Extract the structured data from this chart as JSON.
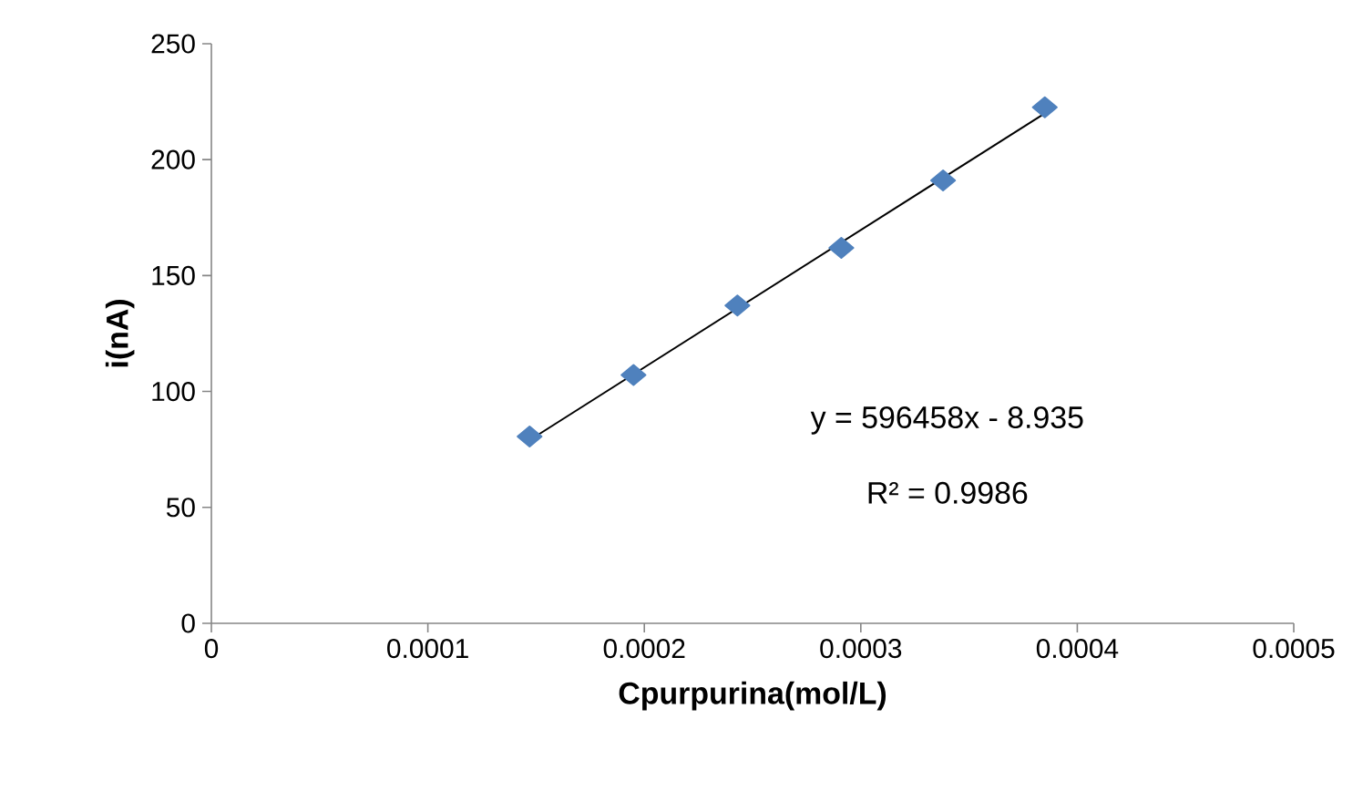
{
  "chart_data": {
    "type": "scatter",
    "xlabel": "Cpurpurina(mol/L)",
    "ylabel": "i(nA)",
    "xlim": [
      0,
      0.0005
    ],
    "ylim": [
      0,
      250
    ],
    "xticks": [
      {
        "value": 0,
        "label": "0"
      },
      {
        "value": 0.0001,
        "label": "0.0001"
      },
      {
        "value": 0.0002,
        "label": "0.0002"
      },
      {
        "value": 0.0003,
        "label": "0.0003"
      },
      {
        "value": 0.0004,
        "label": "0.0004"
      },
      {
        "value": 0.0005,
        "label": "0.0005"
      }
    ],
    "yticks": [
      0,
      50,
      100,
      150,
      200,
      250
    ],
    "grid": false,
    "series": [
      {
        "color": "#4f81bd",
        "marker": "diamond",
        "x": [
          0.000147,
          0.000195,
          0.000243,
          0.000291,
          0.000338,
          0.000385
        ],
        "values": [
          80.6,
          107.1,
          137.1,
          161.9,
          191.0,
          222.6
        ]
      },
      {
        "type": "line",
        "color": "#000000",
        "marker": "none",
        "line_style": "solid",
        "x": [
          0.000147,
          0.000385
        ],
        "values": [
          79,
          220
        ]
      }
    ],
    "annotations": [
      "y = 596458x - 8.935",
      "R² = 0.9986"
    ]
  }
}
